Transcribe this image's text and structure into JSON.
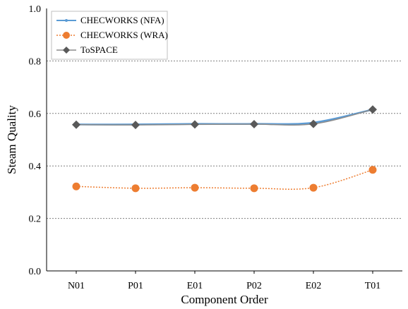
{
  "chart_data": {
    "type": "line",
    "categories": [
      "N01",
      "P01",
      "E01",
      "P02",
      "E02",
      "T01"
    ],
    "xlabel": "Component Order",
    "ylabel": "Steam Quality",
    "ylim": [
      0,
      1.0
    ],
    "yticks": [
      "0.0",
      "0.2",
      "0.4",
      "0.6",
      "0.8",
      "1.0"
    ],
    "grid": true,
    "legend_position": "top-left",
    "series": [
      {
        "name": "CHECWORKS (NFA)",
        "values": [
          0.558,
          0.558,
          0.56,
          0.56,
          0.565,
          0.615
        ],
        "color": "#5b9bd5",
        "style": "solid-line-small-markers"
      },
      {
        "name": "CHECWORKS (WRA)",
        "values": [
          0.322,
          0.315,
          0.317,
          0.315,
          0.317,
          0.385
        ],
        "color": "#ed7d31",
        "style": "dotted-line-circle-markers"
      },
      {
        "name": "ToSPACE",
        "values": [
          0.557,
          0.556,
          0.558,
          0.559,
          0.56,
          0.615
        ],
        "color": "#595959",
        "style": "gray-line-diamond-markers"
      }
    ]
  }
}
